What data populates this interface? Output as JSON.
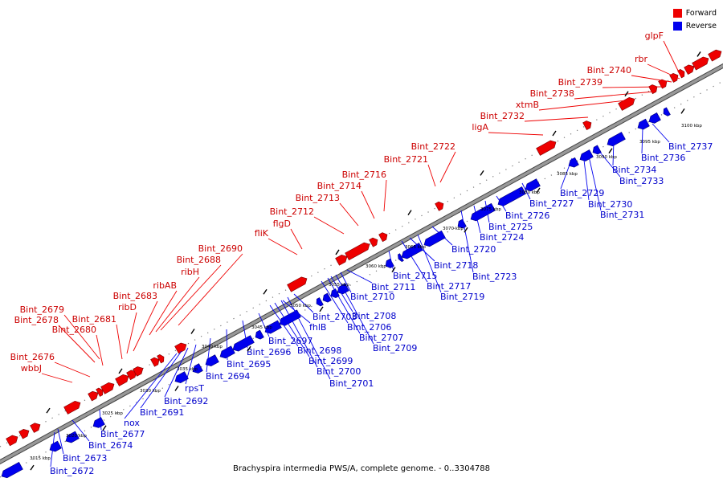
{
  "caption": "Brachyspira intermedia PWS/A, complete genome. - 0..3304788",
  "legend": {
    "items": [
      {
        "label": "Forward",
        "color": "#ee0000"
      },
      {
        "label": "Reverse",
        "color": "#0000ee"
      }
    ]
  },
  "colors": {
    "forward": "#ee0000",
    "reverse": "#0000ee",
    "backbone": "#999999"
  },
  "ticks": [
    "3015 kbp",
    "3020 kbp",
    "3025 kbp",
    "3030 kbp",
    "3035 kbp",
    "3040 kbp",
    "3045 kbp",
    "3050 kbp",
    "3055 kbp",
    "3060 kbp",
    "3065 kbp",
    "3070 kbp",
    "3075 kbp",
    "3080 kbp",
    "3085 kbp",
    "3090 kbp",
    "3095 kbp",
    "3100 kbp"
  ],
  "forward_genes": [
    "wbbJ",
    "Bint_2676",
    "Bint_2678",
    "Bint_2679",
    "Bint_2680",
    "Bint_2681",
    "ribD",
    "Bint_2683",
    "ribAB",
    "ribH",
    "Bint_2688",
    "Bint_2690",
    "fliK",
    "flgD",
    "Bint_2712",
    "Bint_2713",
    "Bint_2714",
    "Bint_2716",
    "Bint_2721",
    "Bint_2722",
    "ligA",
    "Bint_2732",
    "xtmB",
    "Bint_2738",
    "Bint_2739",
    "Bint_2740",
    "rbr",
    "glpF"
  ],
  "reverse_genes": [
    "Bint_2672",
    "Bint_2673",
    "Bint_2674",
    "Bint_2677",
    "nox",
    "Bint_2691",
    "Bint_2692",
    "rpsT",
    "Bint_2694",
    "Bint_2695",
    "Bint_2696",
    "Bint_2697",
    "Bint_2698",
    "Bint_2699",
    "Bint_2700",
    "Bint_2701",
    "fhlB",
    "Bint_2703",
    "Bint_2706",
    "Bint_2707",
    "Bint_2708",
    "Bint_2709",
    "Bint_2710",
    "Bint_2711",
    "Bint_2715",
    "Bint_2717",
    "Bint_2718",
    "Bint_2719",
    "Bint_2720",
    "Bint_2723",
    "Bint_2724",
    "Bint_2725",
    "Bint_2726",
    "Bint_2727",
    "Bint_2729",
    "Bint_2730",
    "Bint_2731",
    "Bint_2733",
    "Bint_2734",
    "Bint_2736",
    "Bint_2737"
  ]
}
